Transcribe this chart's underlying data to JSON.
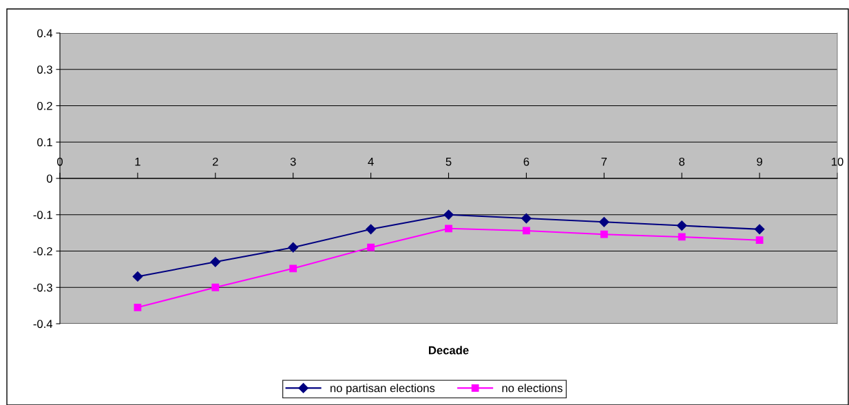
{
  "chart_data": {
    "type": "line",
    "xlabel": "Decade",
    "x": [
      1,
      2,
      3,
      4,
      5,
      6,
      7,
      8,
      9
    ],
    "series": [
      {
        "name": "no partisan elections",
        "color": "#000080",
        "marker": "diamond",
        "values": [
          -0.27,
          -0.23,
          -0.19,
          -0.14,
          -0.1,
          -0.11,
          -0.12,
          -0.13,
          -0.14
        ]
      },
      {
        "name": "no elections",
        "color": "#ff00ff",
        "marker": "square",
        "values": [
          -0.355,
          -0.3,
          -0.248,
          -0.19,
          -0.138,
          -0.144,
          -0.154,
          -0.161,
          -0.17
        ]
      }
    ],
    "xlim": [
      0,
      10
    ],
    "xticks": [
      0,
      1,
      2,
      3,
      4,
      5,
      6,
      7,
      8,
      9,
      10
    ],
    "ylim": [
      -0.4,
      0.4
    ],
    "yticks": [
      -0.4,
      -0.3,
      -0.2,
      -0.1,
      0,
      0.1,
      0.2,
      0.3,
      0.4
    ],
    "grid": "y",
    "legend": "bottom",
    "line_style": "solid"
  }
}
